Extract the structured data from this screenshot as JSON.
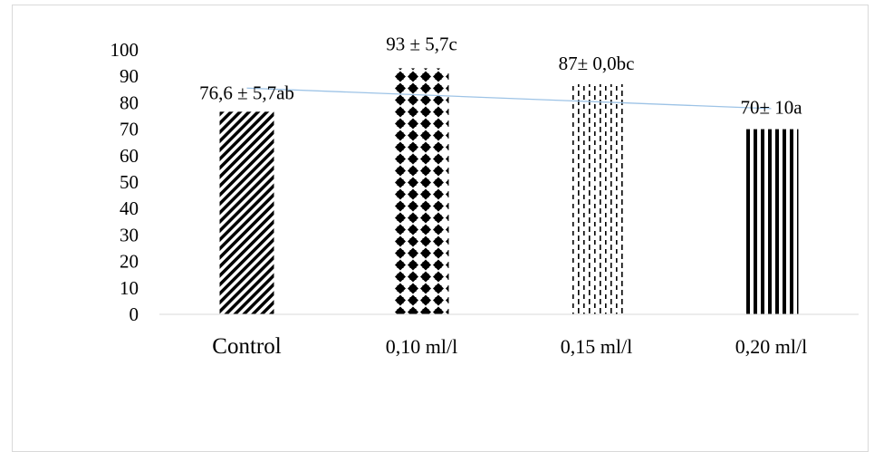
{
  "chart_data": {
    "type": "bar",
    "title": "",
    "xlabel": "",
    "ylabel": "",
    "ylim": [
      0,
      100
    ],
    "yticks": [
      0,
      10,
      20,
      30,
      40,
      50,
      60,
      70,
      80,
      90,
      100
    ],
    "grid": false,
    "categories": [
      "Control",
      "0,10 ml/l",
      "0,15 ml/l",
      "0,20 ml/l"
    ],
    "values": [
      76.6,
      93,
      87,
      70
    ],
    "data_labels": [
      "76,6 ± 5,7ab",
      "93 ± 5,7c",
      "87± 0,0bc",
      "70± 10a"
    ],
    "bar_patterns": [
      "diagonal-stripes",
      "diamond-dots",
      "dashed-vertical",
      "solid-vertical-stripes"
    ],
    "trendline": {
      "type": "linear",
      "color": "#9dc3e6"
    },
    "colors": {
      "bar": "#000000",
      "axis": "#d9d9d9",
      "trendline": "#9dc3e6"
    }
  }
}
